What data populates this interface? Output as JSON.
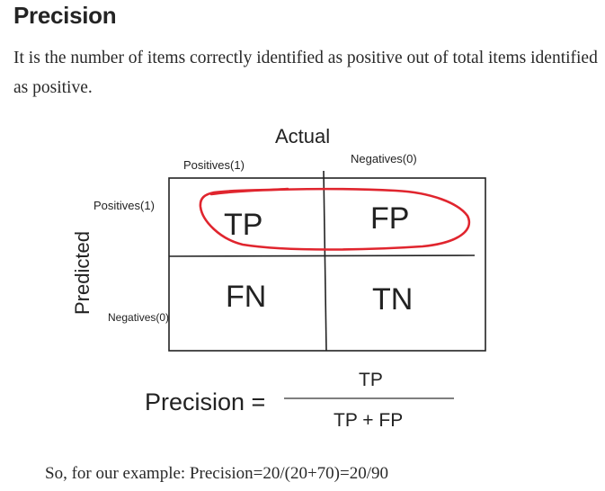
{
  "section": {
    "title": "Precision",
    "description": "It is the number of items correctly identified as positive out of total items identified as positive."
  },
  "figure": {
    "actual_label": "Actual",
    "predicted_label": "Predicted",
    "col_positive": "Positives(1)",
    "col_negative": "Negatives(0)",
    "row_positive": "Positives(1)",
    "row_negative": "Negatives(0)",
    "cells": {
      "tp": "TP",
      "fp": "FP",
      "fn": "FN",
      "tn": "TN"
    },
    "formula": {
      "lhs": "Precision =",
      "numerator": "TP",
      "denominator": "TP + FP"
    },
    "highlight_color": "#e0252e"
  },
  "caption": "So, for our example: Precision=20/(20+70)=20/90"
}
